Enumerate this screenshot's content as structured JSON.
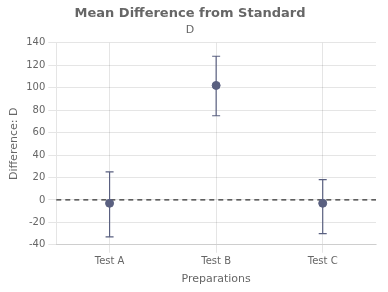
{
  "chart_data": {
    "type": "errorbar",
    "title": "Mean Difference from Standard",
    "subtitle": "D",
    "x_label": "Preparations",
    "y_label": "Difference: D",
    "categories": [
      "Test A",
      "Test B",
      "Test C"
    ],
    "values": [
      -3,
      102,
      -3
    ],
    "upper": [
      25,
      128,
      18
    ],
    "lower": [
      -33,
      75,
      -30
    ],
    "color": "#5A6080",
    "hline": 0,
    "ylim": [
      -40,
      140
    ],
    "yticks": [
      -40,
      -20,
      0,
      20,
      40,
      60,
      80,
      100,
      120,
      140
    ],
    "grid": true
  }
}
